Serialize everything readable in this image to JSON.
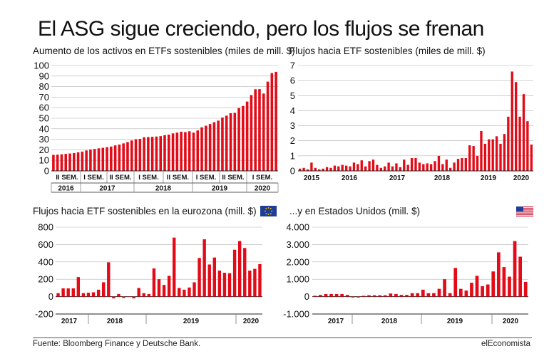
{
  "title": "El ASG sigue creciendo, pero los flujos se frenan",
  "source": "Fuente: Bloomberg Finance y Deutsche Bank.",
  "brand": "elEconomista",
  "colors": {
    "bar": "#e30b17",
    "grid": "#b5b5b5",
    "axis": "#222222"
  },
  "flag_icons": [
    "eu-flag-icon",
    "us-flag-icon"
  ],
  "chart_data": [
    {
      "type": "bar",
      "title": "Aumento de los activos en ETFs sostenibles (miles de mill. $)",
      "ylim": [
        0,
        100
      ],
      "yticks": [
        0,
        10,
        20,
        30,
        40,
        50,
        60,
        70,
        80,
        90,
        100
      ],
      "period_labels": [
        "II SEM.",
        "I SEM.",
        "II SEM.",
        "I SEM.",
        "II SEM.",
        "I SEM.",
        "II SEM.",
        "I SEM."
      ],
      "year_labels": [
        "2016",
        "2017",
        "2018",
        "2019",
        "2020"
      ],
      "values": [
        15.2,
        15.4,
        15.7,
        16.1,
        16.5,
        16.9,
        17.6,
        18.3,
        19.4,
        20.3,
        20.8,
        21.4,
        21.9,
        22.5,
        23.1,
        24.2,
        25.0,
        26.1,
        27.3,
        28.9,
        30.0,
        30.4,
        31.9,
        32.1,
        32.3,
        32.6,
        33.0,
        33.9,
        34.4,
        35.6,
        36.3,
        37.2,
        36.8,
        37.6,
        36.3,
        38.4,
        41.3,
        42.9,
        44.5,
        46.2,
        47.7,
        50.6,
        52.4,
        54.8,
        55.1,
        59.6,
        61.6,
        65.8,
        71.9,
        77.5,
        77.6,
        73.4,
        84.7,
        92.8,
        94.0
      ]
    },
    {
      "type": "bar",
      "title": "Flujos hacia ETF sostenibles (miles de mill. $)",
      "ylim": [
        0,
        7
      ],
      "yticks": [
        0,
        1,
        2,
        3,
        4,
        5,
        6,
        7
      ],
      "year_labels": [
        "2015",
        "2016",
        "2017",
        "2018",
        "2019",
        "2020"
      ],
      "values": [
        0.15,
        0.2,
        0.1,
        0.55,
        0.2,
        0.1,
        0.15,
        0.25,
        0.2,
        0.35,
        0.3,
        0.4,
        0.35,
        0.3,
        0.55,
        0.45,
        0.7,
        0.3,
        0.65,
        0.75,
        0.4,
        0.2,
        0.3,
        0.55,
        0.3,
        0.5,
        0.25,
        0.75,
        0.4,
        0.85,
        0.85,
        0.55,
        0.45,
        0.5,
        0.45,
        0.65,
        1.0,
        0.45,
        0.75,
        0.2,
        0.55,
        0.8,
        0.85,
        0.85,
        1.7,
        1.65,
        1.0,
        2.65,
        1.8,
        2.1,
        2.1,
        2.3,
        1.8,
        2.45,
        3.6,
        6.6,
        5.9,
        3.6,
        5.1,
        3.3,
        1.75
      ]
    },
    {
      "type": "bar",
      "title": "Flujos hacia ETF sostenibles en la eurozona (mill. $)",
      "ylim": [
        -200,
        800
      ],
      "yticks": [
        -200,
        0,
        200,
        400,
        600,
        800
      ],
      "year_labels": [
        "2017",
        "2018",
        "2019",
        "2020"
      ],
      "values": [
        40,
        95,
        95,
        95,
        225,
        40,
        45,
        50,
        80,
        165,
        395,
        -20,
        30,
        -15,
        0,
        -20,
        100,
        40,
        30,
        325,
        200,
        135,
        240,
        680,
        100,
        80,
        105,
        165,
        445,
        660,
        370,
        450,
        300,
        275,
        270,
        540,
        640,
        560,
        300,
        320,
        375
      ]
    },
    {
      "type": "bar",
      "title": "...y en Estados Unidos (mill. $)",
      "ylim": [
        -1000,
        4000
      ],
      "yticks": [
        -1000,
        0,
        1000,
        2000,
        3000,
        4000
      ],
      "ytick_labels": [
        "-1.000",
        "0",
        "1.000",
        "2.000",
        "3.000",
        "4.000"
      ],
      "year_labels": [
        "2017",
        "2018",
        "2019",
        "2020"
      ],
      "values": [
        50,
        100,
        150,
        150,
        150,
        150,
        100,
        -50,
        -50,
        50,
        80,
        80,
        80,
        80,
        180,
        150,
        100,
        100,
        200,
        200,
        400,
        200,
        200,
        450,
        1000,
        200,
        1650,
        450,
        350,
        800,
        1200,
        600,
        700,
        1450,
        2550,
        1700,
        1150,
        3200,
        2300,
        850
      ]
    }
  ]
}
